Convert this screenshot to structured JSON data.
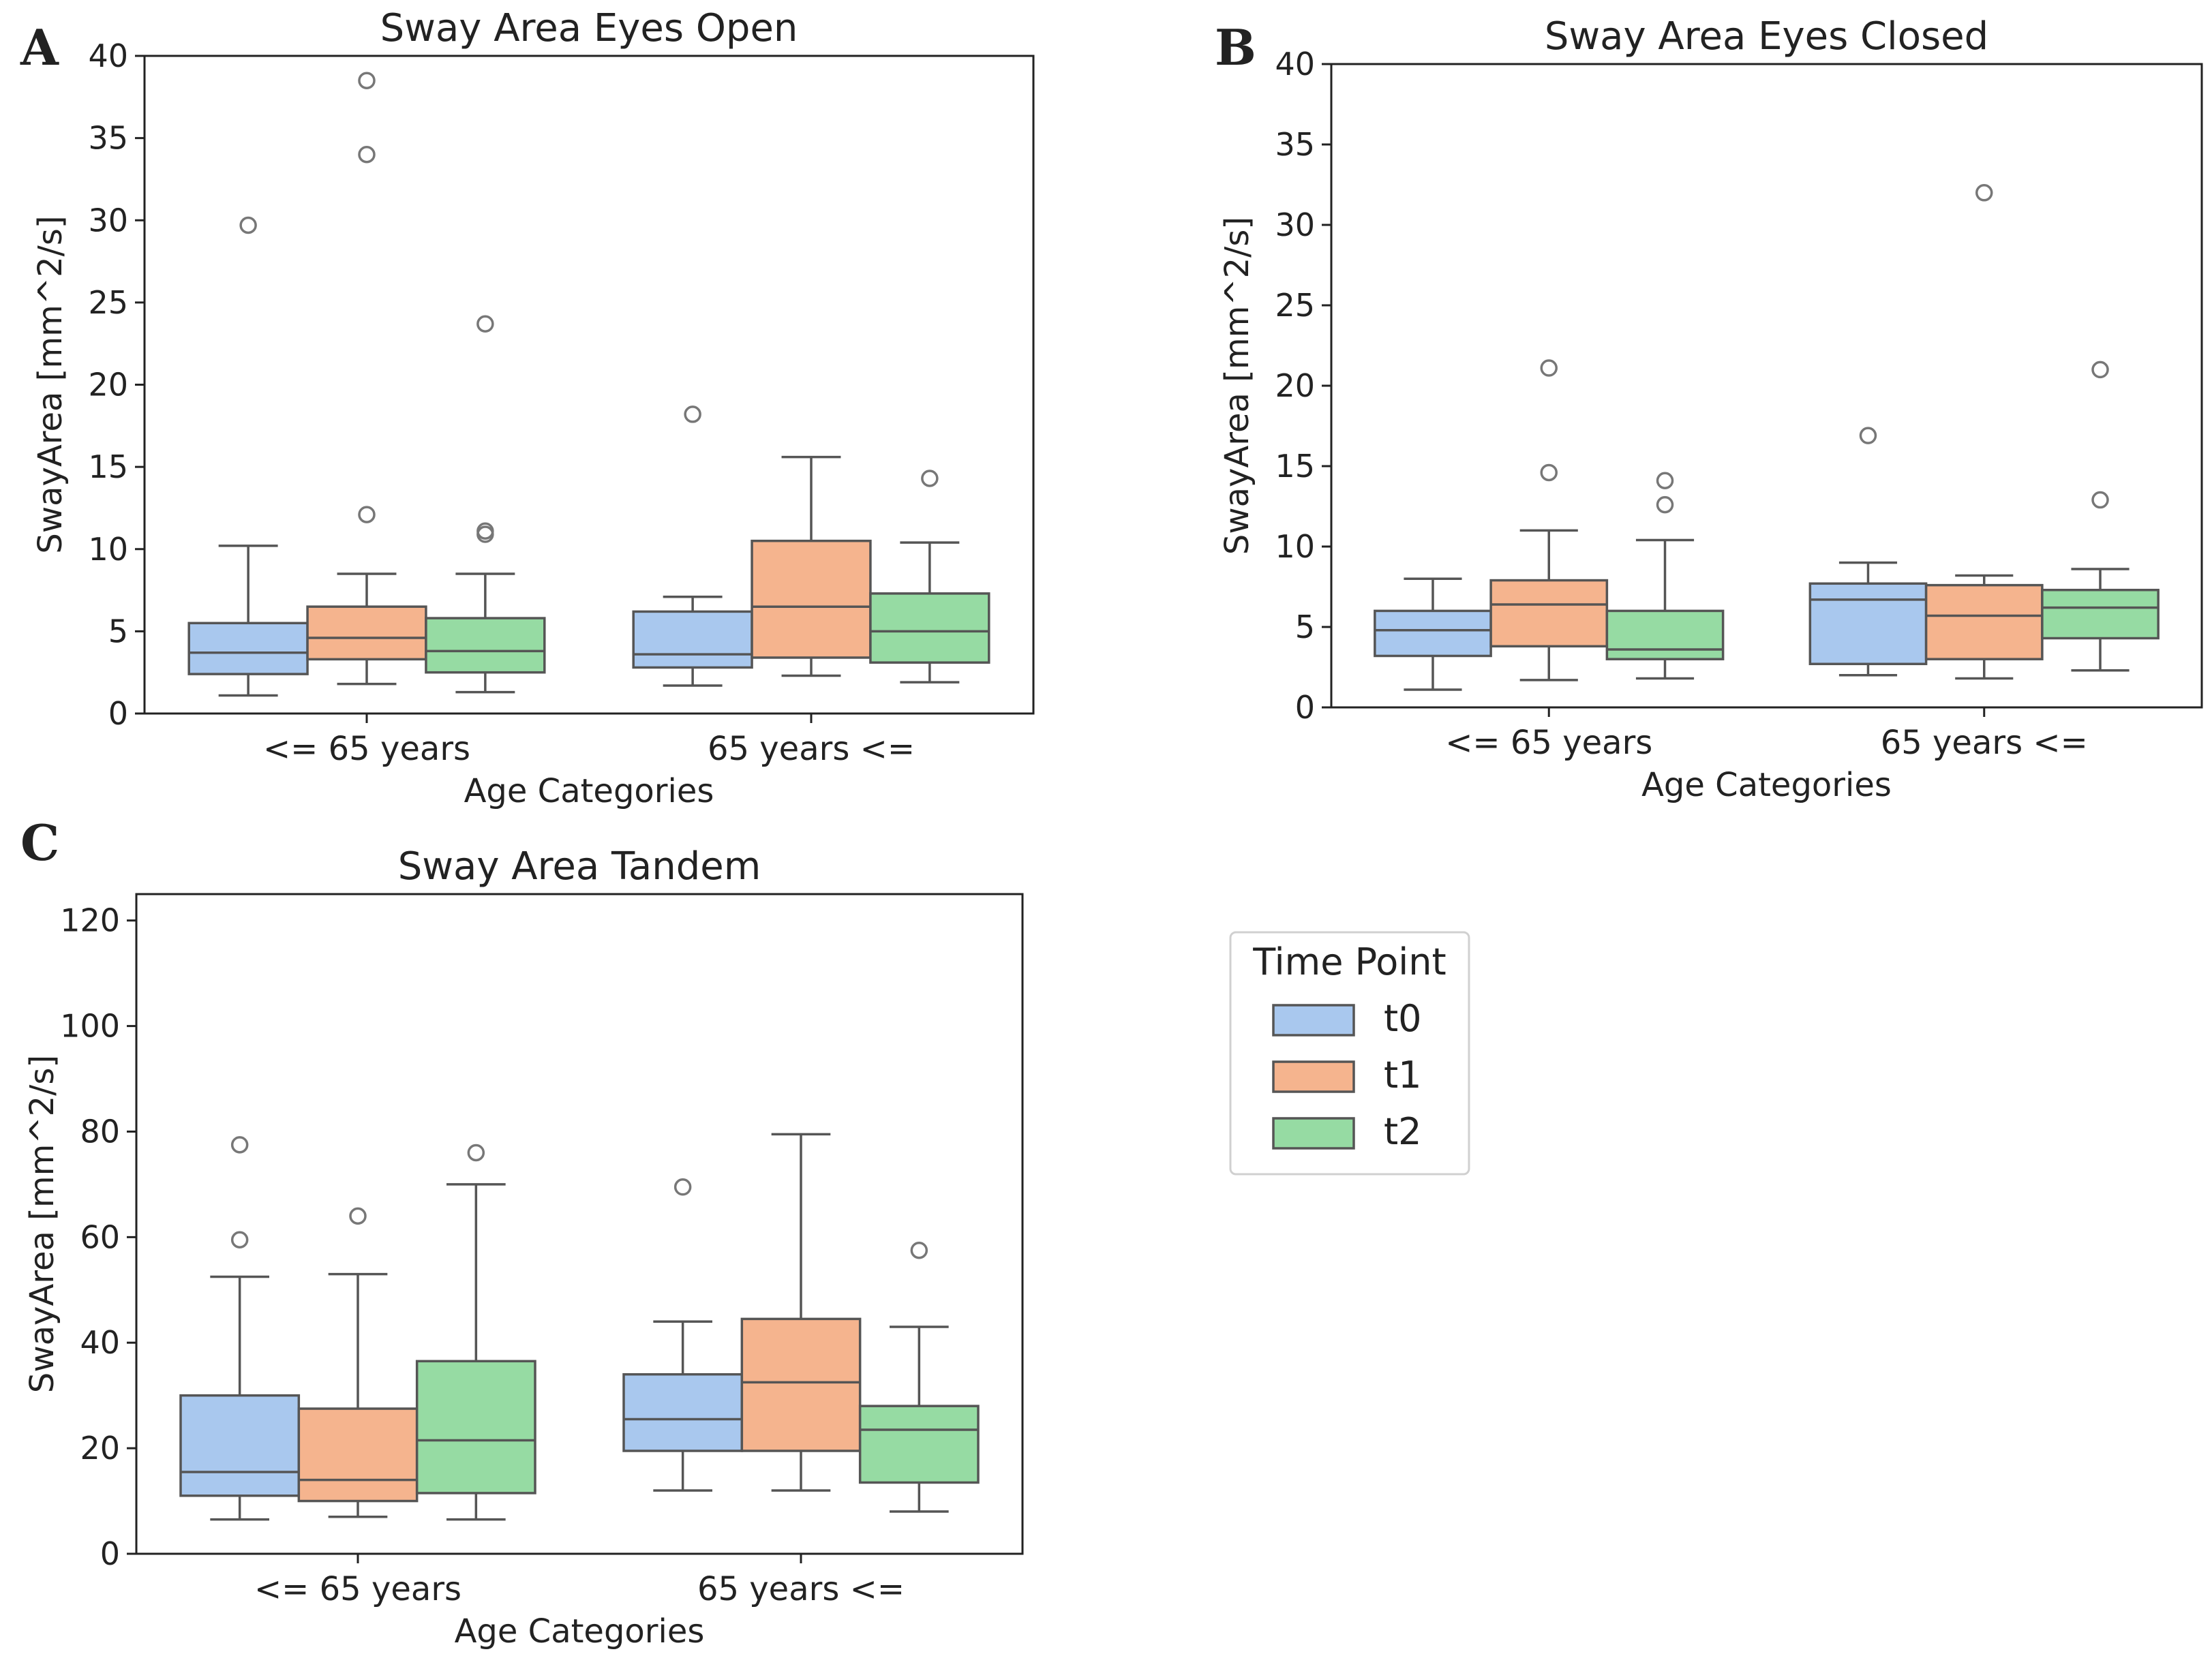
{
  "colors": {
    "t0": "#a9c8ee",
    "t1": "#f5b48e",
    "t2": "#96dba3",
    "stroke": "#555555",
    "axis": "#222222"
  },
  "legend": {
    "title": "Time Point",
    "items": [
      {
        "label": "t0",
        "color": "#a9c8ee"
      },
      {
        "label": "t1",
        "color": "#f5b48e"
      },
      {
        "label": "t2",
        "color": "#96dba3"
      }
    ]
  },
  "chart_data": [
    {
      "id": "A",
      "type": "box",
      "letter": "A",
      "title": "Sway Area Eyes Open",
      "xlabel": "Age Categories",
      "ylabel": "SwayArea [mm^2/s]",
      "ylim": [
        0,
        40
      ],
      "yticks": [
        0,
        5,
        10,
        15,
        20,
        25,
        30,
        35,
        40
      ],
      "categories": [
        "<= 65 years",
        "65 years <="
      ],
      "series": [
        {
          "name": "t0",
          "boxes": [
            {
              "min": 1.1,
              "q1": 2.4,
              "median": 3.7,
              "q3": 5.5,
              "max": 10.2,
              "outliers": [
                29.7
              ]
            },
            {
              "min": 1.7,
              "q1": 2.8,
              "median": 3.6,
              "q3": 6.2,
              "max": 7.1,
              "outliers": [
                18.2
              ]
            }
          ]
        },
        {
          "name": "t1",
          "boxes": [
            {
              "min": 1.8,
              "q1": 3.3,
              "median": 4.6,
              "q3": 6.5,
              "max": 8.5,
              "outliers": [
                12.1,
                34.0,
                38.5
              ]
            },
            {
              "min": 2.3,
              "q1": 3.4,
              "median": 6.5,
              "q3": 10.5,
              "max": 15.6,
              "outliers": []
            }
          ]
        },
        {
          "name": "t2",
          "boxes": [
            {
              "min": 1.3,
              "q1": 2.5,
              "median": 3.8,
              "q3": 5.8,
              "max": 8.5,
              "outliers": [
                10.9,
                11.1,
                23.7
              ]
            },
            {
              "min": 1.9,
              "q1": 3.1,
              "median": 5.0,
              "q3": 7.3,
              "max": 10.4,
              "outliers": [
                14.3
              ]
            }
          ]
        }
      ]
    },
    {
      "id": "B",
      "type": "box",
      "letter": "B",
      "title": "Sway Area Eyes Closed",
      "xlabel": "Age Categories",
      "ylabel": "SwayArea [mm^2/s]",
      "ylim": [
        0,
        40
      ],
      "yticks": [
        0,
        5,
        10,
        15,
        20,
        25,
        30,
        35,
        40
      ],
      "categories": [
        "<= 65 years",
        "65 years <="
      ],
      "series": [
        {
          "name": "t0",
          "boxes": [
            {
              "min": 1.1,
              "q1": 3.2,
              "median": 4.8,
              "q3": 6.0,
              "max": 8.0,
              "outliers": []
            },
            {
              "min": 2.0,
              "q1": 2.7,
              "median": 6.7,
              "q3": 7.7,
              "max": 9.0,
              "outliers": [
                16.9
              ]
            }
          ]
        },
        {
          "name": "t1",
          "boxes": [
            {
              "min": 1.7,
              "q1": 3.8,
              "median": 6.4,
              "q3": 7.9,
              "max": 11.0,
              "outliers": [
                14.6,
                21.1
              ]
            },
            {
              "min": 1.8,
              "q1": 3.0,
              "median": 5.7,
              "q3": 7.6,
              "max": 8.2,
              "outliers": [
                32.0
              ]
            }
          ]
        },
        {
          "name": "t2",
          "boxes": [
            {
              "min": 1.8,
              "q1": 3.0,
              "median": 3.6,
              "q3": 6.0,
              "max": 10.4,
              "outliers": [
                12.6,
                14.1
              ]
            },
            {
              "min": 2.3,
              "q1": 4.3,
              "median": 6.2,
              "q3": 7.3,
              "max": 8.6,
              "outliers": [
                12.9,
                21.0
              ]
            }
          ]
        }
      ]
    },
    {
      "id": "C",
      "type": "box",
      "letter": "C",
      "title": "Sway Area Tandem",
      "xlabel": "Age Categories",
      "ylabel": "SwayArea [mm^2/s]",
      "ylim": [
        0,
        125
      ],
      "yticks": [
        0,
        20,
        40,
        60,
        80,
        100,
        120
      ],
      "categories": [
        "<= 65 years",
        "65 years <="
      ],
      "series": [
        {
          "name": "t0",
          "boxes": [
            {
              "min": 6.5,
              "q1": 11.0,
              "median": 15.5,
              "q3": 30.0,
              "max": 52.5,
              "outliers": [
                59.5,
                77.5
              ]
            },
            {
              "min": 12.0,
              "q1": 19.5,
              "median": 25.5,
              "q3": 34.0,
              "max": 44.0,
              "outliers": [
                69.5
              ]
            }
          ]
        },
        {
          "name": "t1",
          "boxes": [
            {
              "min": 7.0,
              "q1": 10.0,
              "median": 14.0,
              "q3": 27.5,
              "max": 53.0,
              "outliers": [
                64.0
              ]
            },
            {
              "min": 12.0,
              "q1": 19.5,
              "median": 32.5,
              "q3": 44.5,
              "max": 79.5,
              "outliers": []
            }
          ]
        },
        {
          "name": "t2",
          "boxes": [
            {
              "min": 6.5,
              "q1": 11.5,
              "median": 21.5,
              "q3": 36.5,
              "max": 70.0,
              "outliers": [
                76.0
              ]
            },
            {
              "min": 8.0,
              "q1": 13.5,
              "median": 23.5,
              "q3": 28.0,
              "max": 43.0,
              "outliers": [
                57.5
              ]
            }
          ]
        }
      ]
    }
  ]
}
